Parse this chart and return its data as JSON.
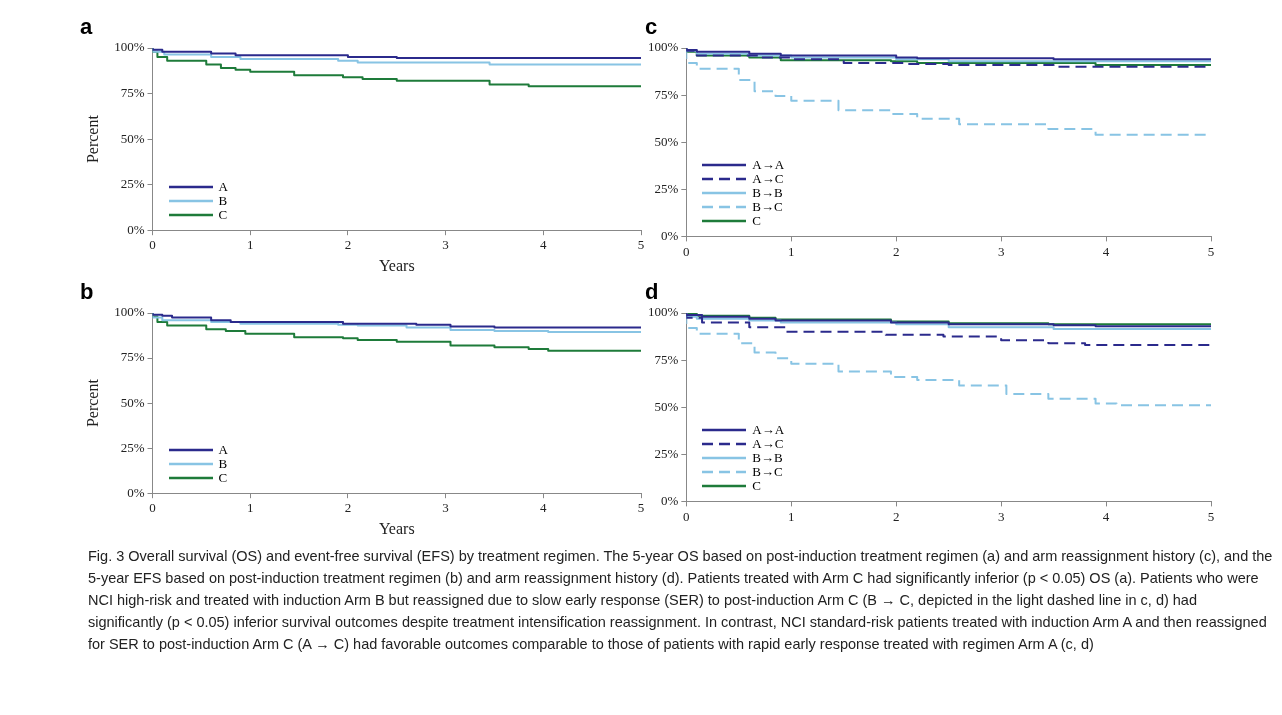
{
  "chart_data": [
    {
      "type": "step",
      "title": "a",
      "xlabel": "Years",
      "ylabel": "Percent",
      "xlim": [
        0,
        5
      ],
      "xticks": [
        0,
        1,
        2,
        3,
        4,
        5
      ],
      "ylim": [
        0,
        100
      ],
      "yticks": [
        {
          "value": 0,
          "label": "0%"
        },
        {
          "value": 25,
          "label": "25%"
        },
        {
          "value": 50,
          "label": "50%"
        },
        {
          "value": 75,
          "label": "75%"
        },
        {
          "value": 100,
          "label": "100%"
        }
      ],
      "legend": "bottom left",
      "grid": false,
      "marker": "none",
      "series": [
        {
          "name": "A",
          "color": "#2b2a8c",
          "x": [
            0,
            0.1,
            0.6,
            0.85,
            2.0,
            2.5,
            3.85,
            5
          ],
          "values": [
            100,
            99,
            98,
            97,
            96,
            95,
            94.5,
            94.5
          ]
        },
        {
          "name": "B",
          "color": "#88c4e4",
          "x": [
            0,
            0.12,
            0.6,
            0.9,
            1.9,
            2.1,
            3.45,
            3.85,
            5
          ],
          "values": [
            100,
            98,
            96.5,
            95,
            94,
            93,
            92,
            91,
            91
          ]
        },
        {
          "name": "C",
          "color": "#1e7b3a",
          "x": [
            0,
            0.05,
            0.15,
            0.55,
            0.7,
            0.85,
            1.0,
            1.45,
            1.95,
            2.15,
            2.5,
            3.45,
            3.85,
            5
          ],
          "values": [
            100,
            98,
            95,
            93,
            91,
            89,
            88,
            87,
            85,
            84,
            83,
            82,
            80,
            79
          ]
        }
      ]
    },
    {
      "type": "step",
      "title": "c",
      "xlim": [
        0,
        5
      ],
      "xticks": [
        0,
        1,
        2,
        3,
        4,
        5
      ],
      "ylim": [
        0,
        100
      ],
      "yticks": [
        {
          "value": 0,
          "label": "0%"
        },
        {
          "value": 25,
          "label": "25%"
        },
        {
          "value": 50,
          "label": "50%"
        },
        {
          "value": 75,
          "label": "75%"
        },
        {
          "value": 100,
          "label": "100%"
        }
      ],
      "legend": "bottom left",
      "grid": false,
      "marker": "none",
      "series": [
        {
          "name": "A→A",
          "color": "#2b2a8c",
          "x": [
            0,
            0.1,
            0.6,
            0.9,
            2.0,
            2.2,
            3.5,
            3.9,
            5
          ],
          "values": [
            100,
            99,
            98,
            97,
            96,
            95,
            94.5,
            94,
            94
          ]
        },
        {
          "name": "A→C",
          "color": "#2b2a8c",
          "line_style": "dashed",
          "x": [
            0,
            0.1,
            0.7,
            1.0,
            1.5,
            2.1,
            2.5,
            3.5,
            3.9,
            5
          ],
          "values": [
            100,
            98.5,
            96,
            95,
            94,
            92,
            91.5,
            91,
            90,
            90
          ]
        },
        {
          "name": "B→B",
          "color": "#88c4e4",
          "x": [
            0,
            0.1,
            0.6,
            1.0,
            2.0,
            2.5,
            3.9,
            5
          ],
          "values": [
            100,
            98.5,
            97,
            96,
            95,
            94,
            93,
            93
          ]
        },
        {
          "name": "B→C",
          "color": "#88c4e4",
          "line_style": "dashed",
          "x": [
            0,
            0.1,
            0.5,
            0.65,
            0.85,
            1.0,
            1.45,
            1.95,
            2.2,
            2.6,
            3.45,
            3.9,
            5
          ],
          "values": [
            100,
            92,
            89,
            83,
            77,
            74.5,
            72,
            67,
            65,
            62.5,
            59.5,
            57,
            54
          ]
        },
        {
          "name": "C",
          "color": "#1e7b3a",
          "x": [
            0,
            0.1,
            0.6,
            0.9,
            1.95,
            2.2,
            3.9,
            5
          ],
          "values": [
            100,
            98,
            96,
            95,
            93.5,
            93,
            92,
            91
          ]
        }
      ]
    },
    {
      "type": "step",
      "title": "b",
      "xlabel": "Years",
      "ylabel": "Percent",
      "xlim": [
        0,
        5
      ],
      "xticks": [
        0,
        1,
        2,
        3,
        4,
        5
      ],
      "ylim": [
        0,
        100
      ],
      "yticks": [
        {
          "value": 0,
          "label": "0%"
        },
        {
          "value": 25,
          "label": "25%"
        },
        {
          "value": 50,
          "label": "50%"
        },
        {
          "value": 75,
          "label": "75%"
        },
        {
          "value": 100,
          "label": "100%"
        }
      ],
      "legend": "bottom left",
      "grid": false,
      "marker": "none",
      "series": [
        {
          "name": "A",
          "color": "#2b2a8c",
          "x": [
            0,
            0.1,
            0.2,
            0.6,
            0.8,
            1.95,
            2.7,
            3.05,
            3.5,
            4.05,
            5
          ],
          "values": [
            100,
            99,
            98.5,
            97.5,
            96,
            95,
            94,
            93.5,
            92.5,
            92,
            92
          ]
        },
        {
          "name": "B",
          "color": "#88c4e4",
          "x": [
            0,
            0.1,
            0.6,
            0.9,
            1.9,
            2.1,
            2.6,
            3.05,
            3.5,
            4.05,
            5
          ],
          "values": [
            100,
            97.5,
            96,
            95,
            94,
            93.5,
            93,
            92,
            90.5,
            90,
            89.5
          ]
        },
        {
          "name": "C",
          "color": "#1e7b3a",
          "x": [
            0,
            0.05,
            0.15,
            0.55,
            0.75,
            0.95,
            1.45,
            1.95,
            2.1,
            2.5,
            3.05,
            3.5,
            3.85,
            4.05,
            5
          ],
          "values": [
            100,
            98,
            95,
            93,
            91,
            90,
            88.5,
            86.5,
            86,
            85,
            84,
            82,
            81,
            80,
            79
          ]
        }
      ]
    },
    {
      "type": "step",
      "title": "d",
      "xlim": [
        0,
        5
      ],
      "xticks": [
        0,
        1,
        2,
        3,
        4,
        5
      ],
      "ylim": [
        0,
        100
      ],
      "yticks": [
        {
          "value": 0,
          "label": "0%"
        },
        {
          "value": 25,
          "label": "25%"
        },
        {
          "value": 50,
          "label": "50%"
        },
        {
          "value": 75,
          "label": "75%"
        },
        {
          "value": 100,
          "label": "100%"
        }
      ],
      "legend": "bottom left",
      "grid": false,
      "marker": "none",
      "series": [
        {
          "name": "A→A",
          "color": "#2b2a8c",
          "x": [
            0,
            0.15,
            0.6,
            0.85,
            1.95,
            2.5,
            3.5,
            3.9,
            5
          ],
          "values": [
            100,
            99,
            98,
            97,
            96,
            95,
            94,
            93.5,
            93
          ]
        },
        {
          "name": "A→C",
          "color": "#2b2a8c",
          "line_style": "dashed",
          "x": [
            0,
            0.15,
            0.6,
            0.95,
            1.9,
            2.45,
            3.0,
            3.45,
            3.8,
            4.0,
            5
          ],
          "values": [
            100,
            97.5,
            95,
            92.5,
            90,
            88.5,
            87.5,
            85.5,
            84,
            83,
            83
          ]
        },
        {
          "name": "B→B",
          "color": "#88c4e4",
          "x": [
            0,
            0.1,
            0.6,
            0.9,
            2.0,
            2.5,
            3.5,
            4.0,
            5
          ],
          "values": [
            100,
            98,
            97,
            96,
            95,
            94,
            92.5,
            91.5,
            91.5
          ]
        },
        {
          "name": "B→C",
          "color": "#88c4e4",
          "line_style": "dashed",
          "x": [
            0,
            0.1,
            0.5,
            0.65,
            0.85,
            1.0,
            1.45,
            1.95,
            2.2,
            2.6,
            3.05,
            3.45,
            3.9,
            4.1,
            5
          ],
          "values": [
            100,
            92,
            89,
            84,
            79,
            76,
            73,
            69,
            66,
            64.5,
            61.5,
            57,
            54.5,
            52,
            51
          ]
        },
        {
          "name": "C",
          "color": "#1e7b3a",
          "x": [
            0,
            0.1,
            0.6,
            0.85,
            1.95,
            2.5,
            3.45,
            3.9,
            5
          ],
          "values": [
            100,
            99.5,
            98.5,
            97.5,
            96.5,
            95.5,
            94.5,
            94,
            94
          ]
        }
      ]
    },
    {
      "type": "other",
      "annotations": [
        "Fig. 3  Overall survival (OS) and event-free survival (EFS) by treatment regimen. The 5-year OS based on post-induction treatment regimen (a) and arm reassignment history (c), and the 5-year EFS based on post-induction treatment regimen (b) and arm reassignment history (d). Patients treated with Arm C had significantly inferior (p < 0.05) OS (a). Patients who were NCI high-risk and treated with induction Arm B but reassigned due to slow early response (SER) to post-induction Arm C (B → C, depicted in the light dashed line in c, d) had significantly (p < 0.05) inferior survival outcomes despite treatment intensification reassignment. In contrast, NCI standard-risk patients treated with induction Arm A and then reassigned for SER to post-induction Arm C (A → C) had favorable outcomes comparable to those of patients with rapid early response treated with regimen Arm A (c, d)"
      ]
    }
  ]
}
